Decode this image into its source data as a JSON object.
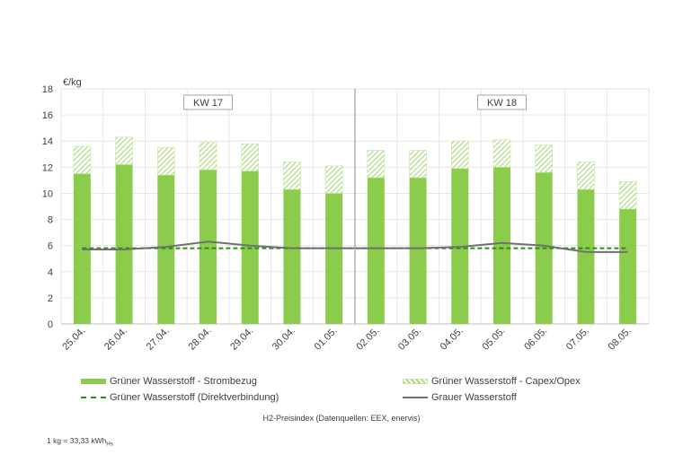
{
  "chart_data": {
    "type": "bar",
    "ylabel": "€/kg",
    "ylim": [
      0,
      18
    ],
    "yticks": [
      0,
      2,
      4,
      6,
      8,
      10,
      12,
      14,
      16,
      18
    ],
    "grid": true,
    "categories": [
      "25.04.",
      "26.04.",
      "27.04.",
      "28.04.",
      "29.04.",
      "30.04.",
      "01.05.",
      "02.05.",
      "03.05.",
      "04.05.",
      "05.05.",
      "06.05.",
      "07.05.",
      "08.05."
    ],
    "week_labels": [
      {
        "label": "KW 17",
        "from": "25.04.",
        "to": "01.05."
      },
      {
        "label": "KW 18",
        "from": "02.05.",
        "to": "08.05."
      }
    ],
    "series": [
      {
        "name": "Grüner Wasserstoff - Strombezug",
        "kind": "bar-stacked",
        "color": "#8ccc4c",
        "values": [
          11.5,
          12.2,
          11.4,
          11.8,
          11.7,
          10.3,
          10.0,
          11.2,
          11.2,
          11.9,
          12.0,
          11.6,
          10.3,
          8.8
        ]
      },
      {
        "name": "Grüner Wasserstoff - Capex/Opex",
        "kind": "bar-stacked-hatched",
        "color": "#b5df8a",
        "values": [
          2.1,
          2.1,
          2.1,
          2.1,
          2.1,
          2.1,
          2.1,
          2.1,
          2.1,
          2.1,
          2.1,
          2.1,
          2.1,
          2.1
        ]
      },
      {
        "name": "Grüner Wasserstoff (Direktverbindung)",
        "kind": "dashed-line",
        "color": "#2e8b1e",
        "values": [
          5.8,
          5.8,
          5.8,
          5.8,
          5.8,
          5.8,
          5.8,
          5.8,
          5.8,
          5.8,
          5.8,
          5.8,
          5.8,
          5.8
        ]
      },
      {
        "name": "Grauer Wasserstoff",
        "kind": "line",
        "color": "#707070",
        "values": [
          5.7,
          5.7,
          5.9,
          6.3,
          6.0,
          5.8,
          5.8,
          5.8,
          5.8,
          5.9,
          6.2,
          6.0,
          5.5,
          5.5
        ]
      }
    ]
  },
  "legend": {
    "strombezug": "Grüner Wasserstoff - Strombezug",
    "capex": "Grüner Wasserstoff - Capex/Opex",
    "direkt": "Grüner Wasserstoff (Direktverbindung)",
    "grau": "Grauer Wasserstoff"
  },
  "source_text": "H2-Preisindex (Datenquellen: EEX, enervis)",
  "footnote": {
    "text": "1 kg = 33,33 kWh",
    "subscript": "Hs"
  }
}
